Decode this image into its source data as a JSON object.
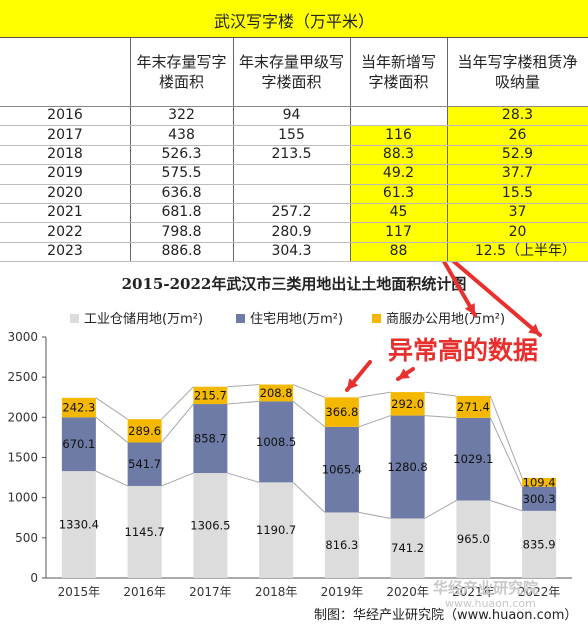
{
  "table": {
    "title": "武汉写字楼（万平米）",
    "headers": [
      "",
      "年末存量写字\n楼面积",
      "年末存量甲级写\n字楼面积",
      "当年新增写\n字楼面积",
      "当年写字楼租赁净\n吸纳量"
    ],
    "rows": [
      [
        "2016",
        "322",
        "94",
        "",
        "28.3"
      ],
      [
        "2017",
        "438",
        "155",
        "116",
        "26"
      ],
      [
        "2018",
        "526.3",
        "213.5",
        "88.3",
        "52.9"
      ],
      [
        "2019",
        "575.5",
        "",
        "49.2",
        "37.7"
      ],
      [
        "2020",
        "636.8",
        "",
        "61.3",
        "15.5"
      ],
      [
        "2021",
        "681.8",
        "257.2",
        "45",
        "37"
      ],
      [
        "2022",
        "798.8",
        "280.9",
        "117",
        "20"
      ],
      [
        "2023",
        "886.8",
        "304.3",
        "88",
        "12.5（上半年）"
      ]
    ],
    "highlight_color": "#ffff00"
  },
  "chart_data": {
    "type": "bar",
    "stacked": true,
    "title": "2015-2022年武汉市三类用地出让土地面积统计图",
    "categories": [
      "2015年",
      "2016年",
      "2017年",
      "2018年",
      "2019年",
      "2020年",
      "2021年",
      "2022年"
    ],
    "series": [
      {
        "name": "工业仓储用地(万m²)",
        "color": "#dcdcdc",
        "values": [
          1330.4,
          1145.7,
          1306.5,
          1190.7,
          816.3,
          741.2,
          965.0,
          835.9
        ]
      },
      {
        "name": "住宅用地(万m²)",
        "color": "#6d7ba6",
        "values": [
          670.1,
          541.7,
          858.7,
          1008.5,
          1065.4,
          1280.8,
          1029.1,
          300.3
        ]
      },
      {
        "name": "商服办公用地(万m²)",
        "color": "#f5b800",
        "values": [
          242.3,
          289.6,
          215.7,
          208.8,
          366.8,
          292.0,
          271.4,
          109.4
        ]
      }
    ],
    "value_labels": [
      [
        "1330.4",
        "1145.7",
        "1306.5",
        "1190.7",
        "816.3",
        "741.2",
        "965.0",
        "835.9"
      ],
      [
        "670.1",
        "541.7",
        "858.7",
        "1008.5",
        "1065.4",
        "1280.8",
        "1029.1",
        "300.3"
      ],
      [
        "242.3",
        "289.6",
        "215.7",
        "208.8",
        "366.8",
        "292.0",
        "271.4",
        "109.4"
      ]
    ],
    "ylim": [
      0,
      3000
    ],
    "yticks": [
      "0",
      "500",
      "1000",
      "1500",
      "2000",
      "2500",
      "3000"
    ],
    "legend_position": "top",
    "grid": false
  },
  "annotation": "异常高的数据",
  "credit": "制图：华经产业研究院（www.huaon.com）",
  "watermark": "华经产业研究院",
  "watermark_url": "www.huaon.com"
}
